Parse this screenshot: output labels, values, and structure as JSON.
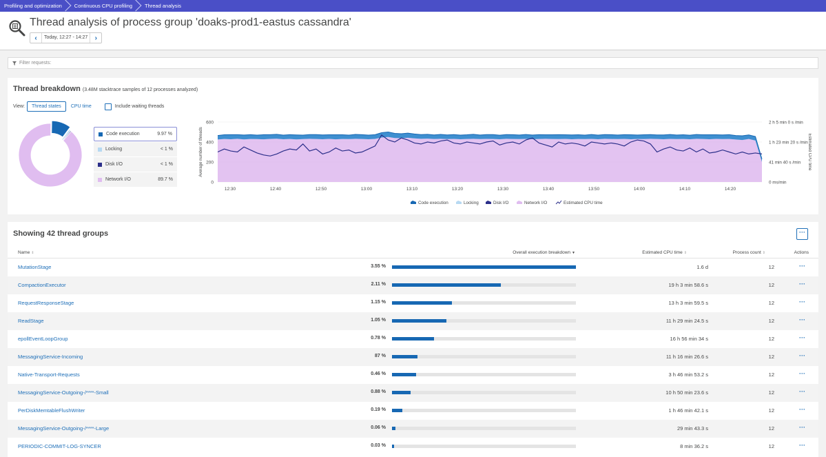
{
  "breadcrumbs": [
    "Profiling and optimization",
    "Continuous CPU profiling",
    "Thread analysis"
  ],
  "header": {
    "title": "Thread analysis of process group 'doaks-prod1-eastus cassandra'",
    "timeframe": "Today, 12:27 - 14:27",
    "prev_icon": "chevron-left-icon",
    "next_icon": "chevron-right-icon"
  },
  "filter": {
    "placeholder": "Filter requests:"
  },
  "breakdown": {
    "title": "Thread breakdown",
    "subtitle": "(3.48M stacktrace samples of 12 processes analyzed)",
    "view_label": "View:",
    "tabs": [
      "Thread states",
      "CPU time"
    ],
    "active_tab": "Thread states",
    "checkbox_label": "Include waiting threads",
    "legend": [
      {
        "name": "Code execution",
        "value": "9.97 %",
        "color": "#1768b3",
        "selected": true
      },
      {
        "name": "Locking",
        "value": "< 1 %",
        "color": "#b7d9f2",
        "selected": false
      },
      {
        "name": "Disk I/O",
        "value": "< 1 %",
        "color": "#2c2f8a",
        "selected": false
      },
      {
        "name": "Network I/O",
        "value": "89.7 %",
        "color": "#e0bdf0",
        "selected": false
      }
    ]
  },
  "chart_data": {
    "type": "area",
    "title": "",
    "ylabel": "Average number of threads",
    "y2label": "Estimated CPU time",
    "ylim": [
      0,
      600
    ],
    "y_ticks": [
      "600",
      "400",
      "200",
      "0"
    ],
    "y2_ticks": [
      "2 h 5 min 0 s /min",
      "1 h 23 min 20 s /min",
      "41 min 40 s /min",
      "0 ms/min"
    ],
    "x_ticks": [
      "12:30",
      "12:40",
      "12:50",
      "13:00",
      "13:10",
      "13:20",
      "13:30",
      "13:40",
      "13:50",
      "14:00",
      "14:10",
      "14:20"
    ],
    "legend": [
      "Code execution",
      "Locking",
      "Disk I/O",
      "Network I/O",
      "Estimated CPU time"
    ],
    "legend_placement": "bottom",
    "series": [
      {
        "name": "Network I/O",
        "color": "#e0bdf0",
        "values": [
          425,
          430,
          428,
          432,
          426,
          430,
          429,
          427,
          431,
          433,
          428,
          430,
          426,
          429,
          432,
          430,
          428,
          431,
          427,
          430,
          429,
          432,
          430,
          428,
          431,
          445,
          450,
          440,
          438,
          442,
          436,
          432,
          434,
          430,
          432,
          429,
          431,
          428,
          430,
          432,
          429,
          431,
          430,
          428,
          432,
          430,
          429,
          431,
          428,
          430,
          432,
          430,
          429,
          431,
          428,
          430,
          429,
          431,
          428,
          432,
          430,
          429,
          431,
          428,
          430,
          429,
          432,
          430,
          428,
          431,
          429,
          430,
          428,
          432,
          430,
          428,
          431,
          429,
          430,
          425,
          420,
          430,
          415,
          200
        ]
      },
      {
        "name": "Code execution",
        "color": "#1768b3",
        "values": [
          40,
          42,
          45,
          41,
          44,
          43,
          40,
          46,
          42,
          44,
          41,
          43,
          45,
          40,
          42,
          44,
          43,
          41,
          45,
          42,
          40,
          44,
          43,
          41,
          42,
          48,
          50,
          46,
          45,
          47,
          44,
          42,
          43,
          41,
          44,
          42,
          43,
          41,
          42,
          45,
          41,
          43,
          44,
          40,
          42,
          43,
          41,
          44,
          42,
          43,
          40,
          42,
          44,
          41,
          43,
          42,
          40,
          44,
          41,
          42,
          43,
          41,
          42,
          44,
          40,
          43,
          42,
          41,
          43,
          44,
          41,
          42,
          40,
          43,
          42,
          44,
          41,
          42,
          43,
          40,
          42,
          41,
          40,
          30
        ]
      },
      {
        "name": "Estimated CPU time",
        "color": "#2c2f8a",
        "values": [
          300,
          330,
          310,
          300,
          350,
          320,
          290,
          270,
          260,
          280,
          310,
          330,
          320,
          380,
          310,
          330,
          280,
          300,
          340,
          310,
          320,
          290,
          300,
          330,
          360,
          470,
          420,
          400,
          440,
          420,
          390,
          380,
          400,
          390,
          410,
          420,
          390,
          380,
          400,
          390,
          380,
          400,
          410,
          370,
          390,
          400,
          380,
          420,
          440,
          390,
          370,
          350,
          400,
          380,
          390,
          380,
          360,
          400,
          390,
          380,
          390,
          380,
          360,
          400,
          420,
          410,
          380,
          300,
          330,
          350,
          320,
          310,
          340,
          300,
          330,
          290,
          300,
          320,
          300,
          280,
          300,
          280,
          290,
          280
        ]
      }
    ],
    "donut": [
      {
        "name": "Code execution",
        "value": 9.97,
        "color": "#1768b3"
      },
      {
        "name": "Locking",
        "value": 0.9,
        "color": "#b7d9f2"
      },
      {
        "name": "Disk I/O",
        "value": 0.5,
        "color": "#2c2f8a"
      },
      {
        "name": "Network I/O",
        "value": 89.7,
        "color": "#e0bdf0"
      }
    ]
  },
  "groups": {
    "title": "Showing 42 thread groups",
    "more_icon": "more-icon",
    "columns": {
      "name": "Name",
      "breakdown": "Overall execution breakdown",
      "cpu": "Estimated CPU time",
      "process": "Process count",
      "actions": "Actions"
    },
    "rows": [
      {
        "name": "MutationStage",
        "pct": "3.55 %",
        "bar": 1.0,
        "cpu": "1.6 d",
        "count": "12"
      },
      {
        "name": "CompactionExecutor",
        "pct": "2.11 %",
        "bar": 0.59,
        "cpu": "19 h 3 min 58.6 s",
        "count": "12"
      },
      {
        "name": "RequestResponseStage",
        "pct": "1.15 %",
        "bar": 0.325,
        "cpu": "13 h 3 min 59.5 s",
        "count": "12"
      },
      {
        "name": "ReadStage",
        "pct": "1.05 %",
        "bar": 0.295,
        "cpu": "11 h 29 min 24.5 s",
        "count": "12"
      },
      {
        "name": "epollEventLoopGroup",
        "pct": "0.78 %",
        "bar": 0.227,
        "cpu": "16 h 56 min 34 s",
        "count": "12"
      },
      {
        "name": "MessagingService-Incoming",
        "pct": "87 %",
        "bar": 0.14,
        "cpu": "11 h 16 min 26.6 s",
        "count": "12"
      },
      {
        "name": "Native-Transport-Requests",
        "pct": "0.46 %",
        "bar": 0.13,
        "cpu": "3 h 46 min 53.2 s",
        "count": "12"
      },
      {
        "name": "MessagingService-Outgoing-/****-Small",
        "pct": "0.88 %",
        "bar": 0.1,
        "cpu": "10 h 50 min 23.6 s",
        "count": "12"
      },
      {
        "name": "PerDiskMemtableFlushWriter",
        "pct": "0.19 %",
        "bar": 0.055,
        "cpu": "1 h 46 min 42.1 s",
        "count": "12"
      },
      {
        "name": "MessagingService-Outgoing-/****-Large",
        "pct": "0.06 %",
        "bar": 0.017,
        "cpu": "29 min 43.3 s",
        "count": "12"
      },
      {
        "name": "PERIODIC-COMMIT-LOG-SYNCER",
        "pct": "0.03 %",
        "bar": 0.01,
        "cpu": "8 min 36.2 s",
        "count": "12"
      }
    ]
  }
}
